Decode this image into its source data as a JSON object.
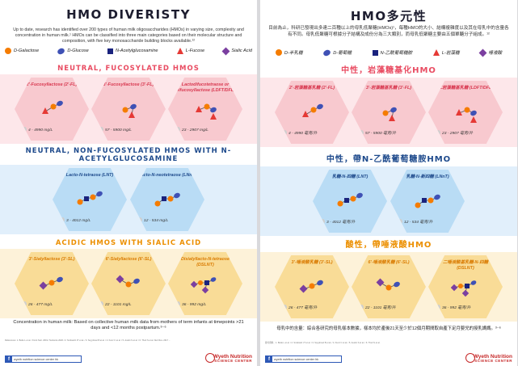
{
  "colors": {
    "galactose": "#f57c00",
    "glucose": "#3f51b5",
    "glcnac": "#1a237e",
    "fucose": "#e53935",
    "sialic": "#7b3fa0",
    "fucosylated_band": "#fde7ea",
    "fucosylated_hex": "#f8c9cf",
    "fucosylated_title": "#e94c62",
    "nonfuco_band": "#e1effb",
    "nonfuco_hex": "#b9dcf5",
    "nonfuco_title": "#1e4a8c",
    "sialic_band": "#fdf2d9",
    "sialic_hex": "#f9dc97",
    "sialic_title": "#ec8f00"
  },
  "left": {
    "title": "HMO DIVERISTY",
    "intro": "Up to date, research has identified over 200 types of human milk oligosaccharides (HMOs) in varying size, complexity and concentration in human milk.¹ HMOs can be classified into three main categories based on their molecular structure and composition, with five key monosaccharide building blocks available.¹²",
    "legend": [
      "D-Galactose",
      "D-Glucose",
      "N-Acetylglucosamine",
      "L-Fucose",
      "Sialic Acid"
    ],
    "sections": [
      {
        "title": "NEUTRAL, FUCOSYLATED HMOS",
        "items": [
          {
            "name": "2'-Fucosyllactose (2'-FL)",
            "range": "4 - 4990 mg/L"
          },
          {
            "name": "3'-Fucosyllactose (3'-FL)",
            "range": "57 - 5900 mg/L"
          },
          {
            "name": "Lactodifucotetraose or Difucosyllactose (LDFT/DFL)",
            "range": "23 - 2907 mg/L"
          }
        ]
      },
      {
        "title": "NEUTRAL, NON-FUCOSYLATED HMOS WITH N-ACETYLGLUCOSAMINE",
        "items": [
          {
            "name": "Lacto-N-tetraose (LNT)",
            "range": "3 - 4012 mg/L"
          },
          {
            "name": "Lacto-N-neotetraose (LNnT)",
            "range": "12 - 534 mg/L"
          }
        ]
      },
      {
        "title": "ACIDIC HMOS WITH SIALIC ACID",
        "items": [
          {
            "name": "3'-Sialyllactose (3'-SL)",
            "range": "26 - 477 mg/L"
          },
          {
            "name": "6'-Sialyllactose (6'-SL)",
            "range": "22 - 1101 mg/L"
          },
          {
            "name": "Disialyllacto-N-tetraose (DSLNT)",
            "range": "36 - 992 mg/L"
          }
        ]
      }
    ],
    "footer_note": "Concentration in human milk: Based on collective human milk data from mothers of term infants at timepoints >21 days and <12 months postpartum.³⁻⁶",
    "refs": "References: 1. Bode L et al. / Front Nutr. 2019 / Nutrients 2020 / 2. Smilowitz JT et al. / 3. Soyyilmaz B et al. / 4. Kunz C et al. / 5. Austin S et al. / 6. Thurl S et al. Nutr Rev. 2017 ...",
    "fb": "wyeth nutrition science center hk"
  },
  "right": {
    "title": "HMO多元性",
    "intro": "目前為止，科研已發現出多達二百種以上的母乳低聚糖(HMOs)¹，每種HMO的大小、結構複雜度以及其在母乳中的含量各有不同。母乳低聚糖可根據分子結構及成份分為三大類別，而母乳低聚糖主要由五個單醣分子組成。¹²",
    "legend": [
      "D-半乳糖",
      "D-葡萄糖",
      "N-乙酰葡萄糖胺",
      "L-岩藻糖",
      "唾液酸"
    ],
    "sections": [
      {
        "title": "中性，岩藻糖基化HMO",
        "items": [
          {
            "name": "2'-岩藻糖基乳糖 (2'-FL)",
            "range": "4 - 4990 毫克/升"
          },
          {
            "name": "3'-岩藻糖基乳糖 (3'-FL)",
            "range": "57 - 5900 毫克/升"
          },
          {
            "name": "二岩藻糖基乳糖 (LDFT/DFL)",
            "range": "23 - 2907 毫克/升"
          }
        ]
      },
      {
        "title": "中性，帶N-乙酰葡萄糖胺HMO",
        "items": [
          {
            "name": "乳糖-N-四糖 (LNT)",
            "range": "3 - 4012 毫克/升"
          },
          {
            "name": "乳糖-N-新四糖 (LNnT)",
            "range": "12 - 534 毫克/升"
          }
        ]
      },
      {
        "title": "酸性，帶唾液酸HMO",
        "items": [
          {
            "name": "3'-唾液酸乳糖 (3'-SL)",
            "range": "26 - 477 毫克/升"
          },
          {
            "name": "6'-唾液酸乳糖 (6'-SL)",
            "range": "22 - 1101 毫克/升"
          },
          {
            "name": "二唾液酸基乳糖-N-四糖 (DSLNT)",
            "range": "36 - 992 毫克/升"
          }
        ]
      }
    ],
    "footer_note": "母乳中的含量：綜合各研究的母乳樣本數據，樣本均於產後21天至少於12個月期間取自產下足月嬰兒的授乳媽媽。³⁻⁶",
    "refs": "參考資料：1. Bode L et al. / 2. Smilowitz JT et al. / 3. Soyyilmaz B et al. / 4. Kunz C et al. / 5. Austin S et al. / 6. Thurl S et al.",
    "fb": "wyeth nutrition science center hk"
  },
  "brand": {
    "name": "Wyeth Nutrition",
    "sub": "SCIENCE CENTER"
  }
}
